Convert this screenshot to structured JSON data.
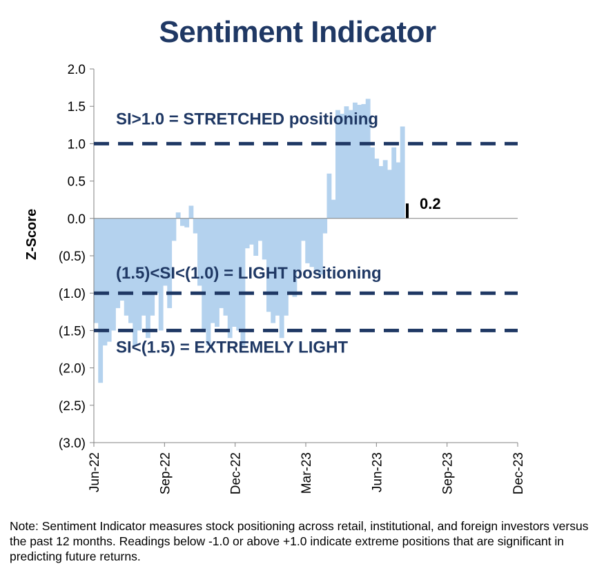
{
  "chart_data": {
    "type": "bar",
    "title": "Sentiment Indicator",
    "ylabel": "Z-Score",
    "xlabel": "",
    "ylim": [
      -3.0,
      2.0
    ],
    "y_ticks": [
      2.0,
      1.5,
      1.0,
      0.5,
      0.0,
      -0.5,
      -1.0,
      -1.5,
      -2.0,
      -2.5,
      -3.0
    ],
    "y_tick_labels": [
      "2.0",
      "1.5",
      "1.0",
      "0.5",
      "0.0",
      "(0.5)",
      "(1.0)",
      "(1.5)",
      "(2.0)",
      "(2.5)",
      "(3.0)"
    ],
    "x_tick_labels": [
      "Jun-22",
      "Sep-22",
      "Dec-22",
      "Mar-23",
      "Jun-23",
      "Sep-23",
      "Dec-23"
    ],
    "bar_color": "#b4d2ee",
    "latest_bar_color": "#000000",
    "reference_line_color": "#1f3864",
    "grid": false,
    "values": [
      -1.4,
      -2.2,
      -1.7,
      -1.65,
      -1.5,
      -1.2,
      -1.1,
      -1.3,
      -1.4,
      -1.7,
      -1.5,
      -1.3,
      -1.6,
      -1.3,
      -1.0,
      -1.5,
      -0.9,
      -1.2,
      -0.3,
      0.08,
      -0.1,
      -0.12,
      0.17,
      -0.2,
      -0.9,
      -1.5,
      -1.7,
      -1.4,
      -1.45,
      -1.2,
      -1.3,
      -1.6,
      -1.45,
      -1.5,
      -1.7,
      -0.4,
      -0.35,
      -0.5,
      -0.3,
      -0.55,
      -1.25,
      -1.4,
      -1.3,
      -1.6,
      -1.3,
      -1.0,
      -1.05,
      -0.7,
      -0.3,
      -0.6,
      -0.65,
      -0.7,
      -0.75,
      -0.2,
      0.6,
      0.25,
      1.45,
      1.4,
      1.5,
      1.45,
      1.55,
      1.52,
      1.53,
      1.6,
      0.95,
      0.8,
      0.7,
      0.78,
      0.65,
      0.95,
      0.75,
      1.23,
      0.2
    ],
    "latest_value_label": "0.2",
    "reference_lines": [
      {
        "y": 1.0,
        "label": "SI>1.0 = STRETCHED positioning"
      },
      {
        "y": -1.0,
        "label": "(1.5)<SI<(1.0) = LIGHT positioning"
      },
      {
        "y": -1.5,
        "label": "SI<(1.5) = EXTREMELY LIGHT"
      }
    ]
  },
  "note": "Note: Sentiment Indicator measures stock positioning across retail, institutional, and foreign investors versus the past 12 months. Readings below -1.0 or above +1.0 indicate extreme positions that are significant in predicting future returns."
}
